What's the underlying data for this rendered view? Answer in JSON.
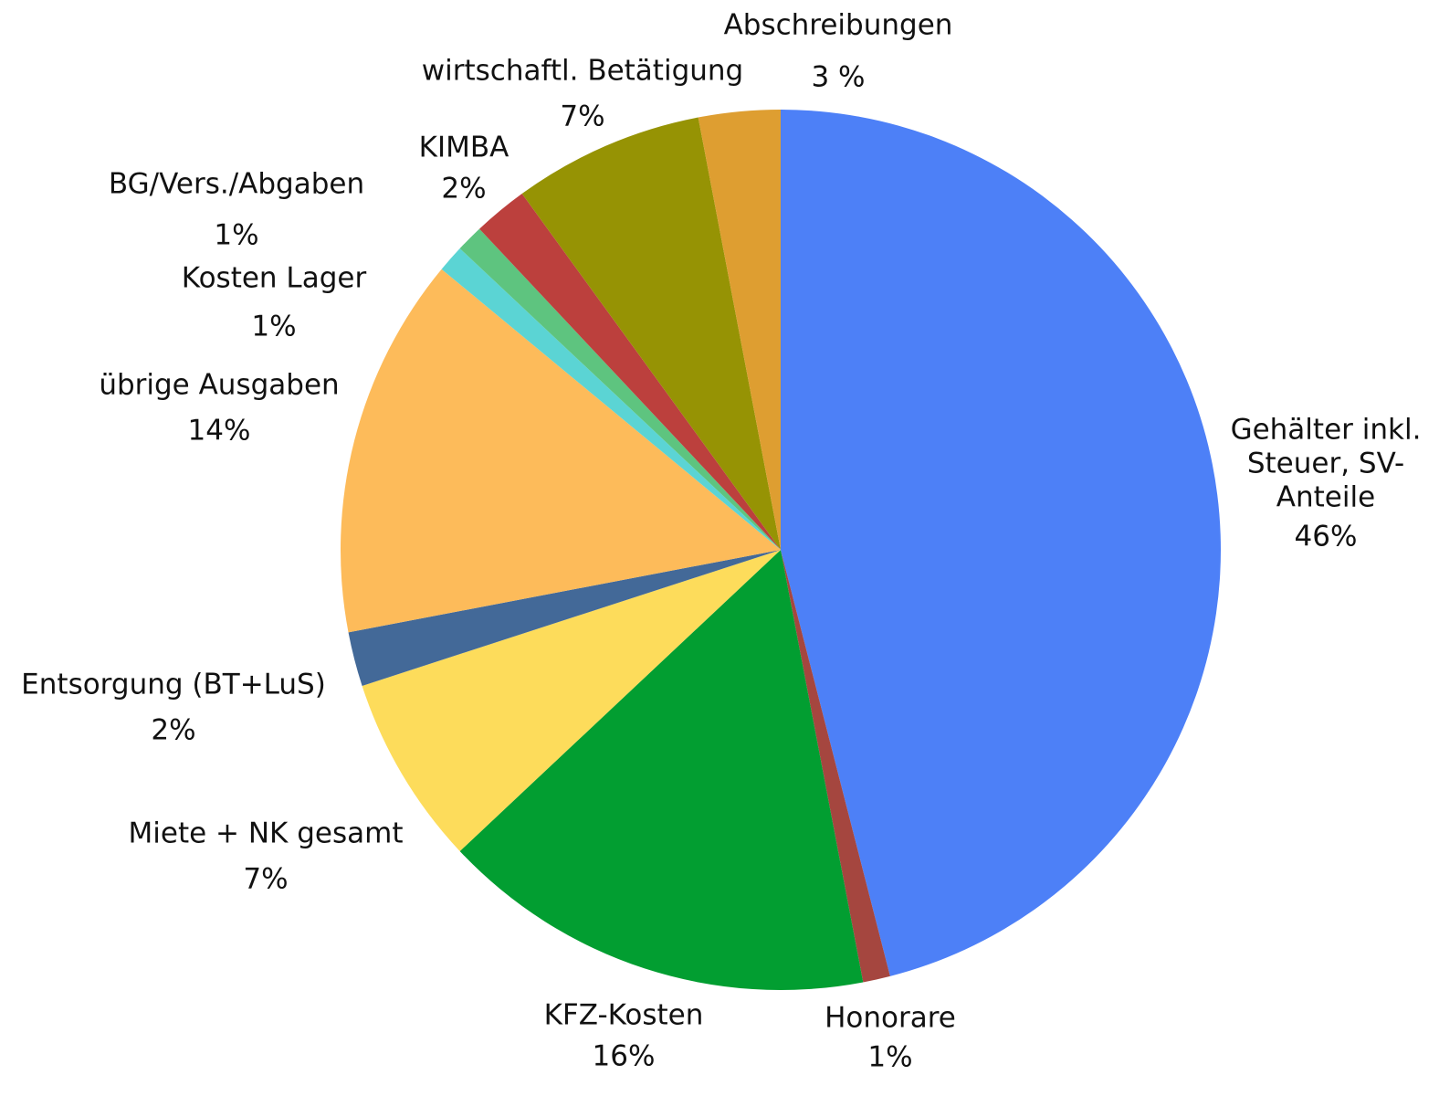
{
  "chart_data": {
    "type": "pie",
    "categories": [
      "Gehälter inkl. Steuer, SV-Anteile",
      "Honorare",
      "KFZ-Kosten",
      "Miete + NK gesamt",
      "Entsorgung (BT+LuS)",
      "übrige Ausgaben",
      "Kosten Lager",
      "BG/Vers./Abgaben",
      "KIMBA",
      "wirtschaftl. Betätigung",
      "Abschreibungen"
    ],
    "values": [
      46,
      1,
      16,
      7,
      2,
      14,
      1,
      1,
      2,
      7,
      3
    ],
    "value_labels": [
      "46%",
      "1%",
      "16%",
      "7%",
      "2%",
      "14%",
      "1%",
      "1%",
      "2%",
      "7%",
      "3 %"
    ],
    "colors": [
      "#4d80f7",
      "#a5463f",
      "#029e31",
      "#fddc5b",
      "#436998",
      "#fdbb5a",
      "#5bd4d4",
      "#5ec47f",
      "#bc403d",
      "#969304",
      "#de9e31"
    ]
  }
}
